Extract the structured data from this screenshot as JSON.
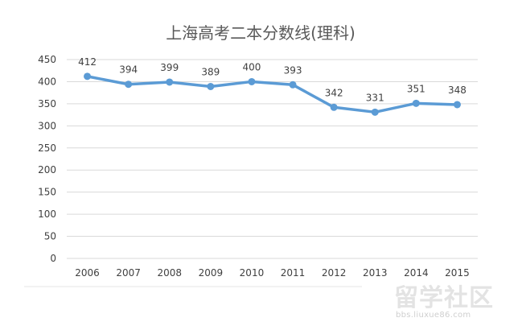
{
  "chart_data": {
    "type": "line",
    "title": "上海高考二本分数线(理科)",
    "xlabel": "",
    "ylabel": "",
    "categories": [
      "2006",
      "2007",
      "2008",
      "2009",
      "2010",
      "2011",
      "2012",
      "2013",
      "2014",
      "2015"
    ],
    "series": [
      {
        "values": [
          412,
          394,
          399,
          389,
          400,
          393,
          342,
          331,
          351,
          348
        ]
      }
    ],
    "ylim": [
      0,
      450
    ],
    "yticks": [
      "0",
      "50",
      "100",
      "150",
      "200",
      "250",
      "300",
      "350",
      "400",
      "450"
    ],
    "grid": true,
    "data_labels": true,
    "line_color": "#5b9bd5",
    "grid_color": "#d9d9d9"
  },
  "watermark": {
    "text": "留学社区",
    "url": "bbs.liuxue86.com"
  }
}
